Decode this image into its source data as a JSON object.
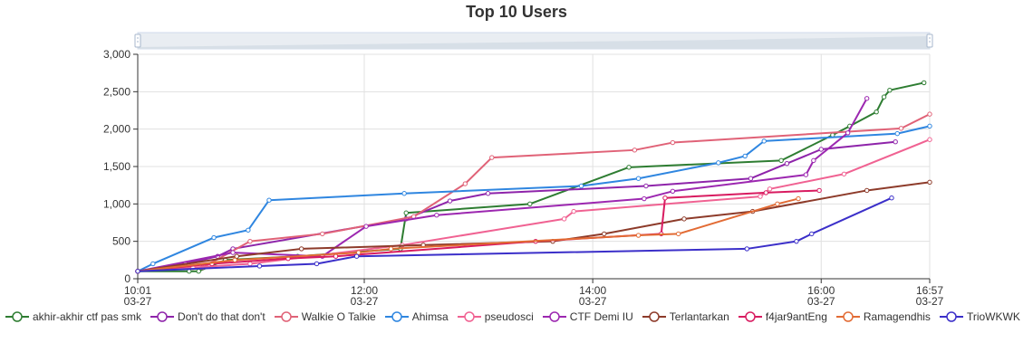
{
  "chart_data": {
    "type": "line",
    "title": "Top 10 Users",
    "xlabel": "",
    "ylabel": "",
    "x_type": "time",
    "xlim": [
      "03-27 10:01",
      "03-27 16:57"
    ],
    "ylim": [
      0,
      3000
    ],
    "y_ticks": [
      "0",
      "500",
      "1,000",
      "1,500",
      "2,000",
      "2,500",
      "3,000"
    ],
    "x_ticks": [
      {
        "time": "10:01",
        "date": "03-27",
        "t": "03-27 10:01"
      },
      {
        "time": "12:00",
        "date": "03-27",
        "t": "03-27 12:00"
      },
      {
        "time": "14:00",
        "date": "03-27",
        "t": "03-27 14:00"
      },
      {
        "time": "16:00",
        "date": "03-27",
        "t": "03-27 16:00"
      },
      {
        "time": "16:57",
        "date": "03-27",
        "t": "03-27 16:57"
      }
    ],
    "grid": true,
    "legend_position": "bottom",
    "data_zoom_slider": true,
    "series": [
      {
        "name": "akhir-akhir ctf pas smk",
        "color": "#2e7d32",
        "points": [
          [
            "03-27 10:01",
            100
          ],
          [
            "03-27 10:28",
            100
          ],
          [
            "03-27 10:33",
            100
          ],
          [
            "03-27 10:47",
            250
          ],
          [
            "03-27 11:25",
            300
          ],
          [
            "03-27 12:19",
            400
          ],
          [
            "03-27 12:22",
            880
          ],
          [
            "03-27 13:27",
            1000
          ],
          [
            "03-27 14:19",
            1490
          ],
          [
            "03-27 15:39",
            1580
          ],
          [
            "03-27 16:06",
            1920
          ],
          [
            "03-27 16:15",
            2040
          ],
          [
            "03-27 16:29",
            2230
          ],
          [
            "03-27 16:33",
            2430
          ],
          [
            "03-27 16:36",
            2520
          ],
          [
            "03-27 16:54",
            2620
          ]
        ]
      },
      {
        "name": "Don't do that don't",
        "color": "#8e24aa",
        "points": [
          [
            "03-27 10:01",
            100
          ],
          [
            "03-27 10:26",
            200
          ],
          [
            "03-27 10:43",
            300
          ],
          [
            "03-27 10:51",
            400
          ],
          [
            "03-27 12:22",
            800
          ],
          [
            "03-27 12:45",
            1040
          ],
          [
            "03-27 13:05",
            1140
          ],
          [
            "03-27 14:28",
            1240
          ],
          [
            "03-27 15:23",
            1340
          ],
          [
            "03-27 15:42",
            1540
          ],
          [
            "03-27 16:00",
            1730
          ],
          [
            "03-27 16:39",
            1830
          ]
        ]
      },
      {
        "name": "Walkie O Talkie",
        "color": "#e06277",
        "points": [
          [
            "03-27 10:01",
            100
          ],
          [
            "03-27 10:35",
            150
          ],
          [
            "03-27 11:00",
            500
          ],
          [
            "03-27 11:38",
            600
          ],
          [
            "03-27 12:26",
            830
          ],
          [
            "03-27 12:53",
            1270
          ],
          [
            "03-27 13:07",
            1620
          ],
          [
            "03-27 14:22",
            1720
          ],
          [
            "03-27 14:42",
            1820
          ],
          [
            "03-27 16:42",
            2010
          ],
          [
            "03-27 16:57",
            2200
          ]
        ]
      },
      {
        "name": "Ahimsa",
        "color": "#2f86e0",
        "points": [
          [
            "03-27 10:01",
            100
          ],
          [
            "03-27 10:09",
            200
          ],
          [
            "03-27 10:41",
            550
          ],
          [
            "03-27 10:59",
            650
          ],
          [
            "03-27 11:10",
            1050
          ],
          [
            "03-27 12:21",
            1140
          ],
          [
            "03-27 13:54",
            1240
          ],
          [
            "03-27 14:24",
            1340
          ],
          [
            "03-27 15:06",
            1550
          ],
          [
            "03-27 15:20",
            1640
          ],
          [
            "03-27 15:30",
            1840
          ],
          [
            "03-27 16:40",
            1940
          ],
          [
            "03-27 16:57",
            2040
          ]
        ]
      },
      {
        "name": "pseudosci",
        "color": "#f06292",
        "points": [
          [
            "03-27 10:01",
            100
          ],
          [
            "03-27 10:30",
            150
          ],
          [
            "03-27 11:00",
            200
          ],
          [
            "03-27 12:20",
            450
          ],
          [
            "03-27 13:45",
            800
          ],
          [
            "03-27 13:50",
            900
          ],
          [
            "03-27 15:28",
            1100
          ],
          [
            "03-27 15:33",
            1200
          ],
          [
            "03-27 16:12",
            1400
          ],
          [
            "03-27 16:57",
            1860
          ]
        ]
      },
      {
        "name": "CTF Demi IU",
        "color": "#9c27b0",
        "points": [
          [
            "03-27 10:01",
            100
          ],
          [
            "03-27 10:51",
            350
          ],
          [
            "03-27 11:38",
            300
          ],
          [
            "03-27 12:01",
            700
          ],
          [
            "03-27 12:38",
            850
          ],
          [
            "03-27 14:27",
            1070
          ],
          [
            "03-27 14:42",
            1170
          ],
          [
            "03-27 15:52",
            1390
          ],
          [
            "03-27 15:56",
            1580
          ],
          [
            "03-27 16:14",
            1950
          ],
          [
            "03-27 16:24",
            2410
          ]
        ]
      },
      {
        "name": "Terlantarkan",
        "color": "#8d3b2a",
        "points": [
          [
            "03-27 10:01",
            100
          ],
          [
            "03-27 10:53",
            300
          ],
          [
            "03-27 11:27",
            400
          ],
          [
            "03-27 12:31",
            450
          ],
          [
            "03-27 13:39",
            500
          ],
          [
            "03-27 14:06",
            600
          ],
          [
            "03-27 14:48",
            800
          ],
          [
            "03-27 15:24",
            900
          ],
          [
            "03-27 16:24",
            1180
          ],
          [
            "03-27 16:57",
            1290
          ]
        ]
      },
      {
        "name": "f4jar9antEng",
        "color": "#d81b60",
        "points": [
          [
            "03-27 10:01",
            100
          ],
          [
            "03-27 10:40",
            200
          ],
          [
            "03-27 11:20",
            270
          ],
          [
            "03-27 11:45",
            300
          ],
          [
            "03-27 13:30",
            500
          ],
          [
            "03-27 14:36",
            600
          ],
          [
            "03-27 14:38",
            1080
          ],
          [
            "03-27 15:31",
            1150
          ],
          [
            "03-27 15:59",
            1180
          ]
        ]
      },
      {
        "name": "Ramagendhis",
        "color": "#e26b34",
        "points": [
          [
            "03-27 10:01",
            100
          ],
          [
            "03-27 10:52",
            250
          ],
          [
            "03-27 11:57",
            350
          ],
          [
            "03-27 12:14",
            400
          ],
          [
            "03-27 14:24",
            580
          ],
          [
            "03-27 14:45",
            600
          ],
          [
            "03-27 15:37",
            1000
          ],
          [
            "03-27 15:48",
            1070
          ]
        ]
      },
      {
        "name": "TrioWKWK",
        "color": "#3b2fc9",
        "points": [
          [
            "03-27 10:01",
            100
          ],
          [
            "03-27 11:05",
            170
          ],
          [
            "03-27 11:35",
            200
          ],
          [
            "03-27 11:56",
            300
          ],
          [
            "03-27 15:21",
            400
          ],
          [
            "03-27 15:47",
            500
          ],
          [
            "03-27 15:55",
            600
          ],
          [
            "03-27 16:37",
            1080
          ]
        ]
      }
    ]
  }
}
